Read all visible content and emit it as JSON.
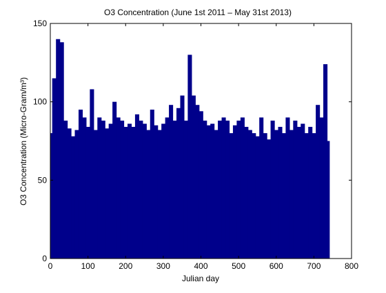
{
  "chart_data": {
    "type": "bar",
    "title": "O3 Concentration (June 1st 2011 – May 31st 2013)",
    "xlabel": "Julian day",
    "ylabel": "O3 Concentration  (Micro-Gram/m³)",
    "xlim": [
      0,
      800
    ],
    "ylim": [
      0,
      150
    ],
    "xticks": [
      "0",
      "100",
      "200",
      "300",
      "400",
      "500",
      "600",
      "700",
      "800"
    ],
    "yticks": [
      "0",
      "50",
      "100",
      "150"
    ],
    "grid": false,
    "legend": "none",
    "bar_color": "#00008b",
    "series": [
      {
        "x": [
          1,
          10,
          20,
          30,
          40,
          50,
          60,
          70,
          80,
          90,
          100,
          110,
          120,
          130,
          140,
          150,
          160,
          170,
          180,
          190,
          200,
          210,
          220,
          230,
          240,
          250,
          260,
          270,
          280,
          290,
          300,
          310,
          320,
          330,
          340,
          350,
          360,
          370,
          380,
          390,
          400,
          410,
          420,
          430,
          440,
          450,
          460,
          470,
          480,
          490,
          500,
          510,
          520,
          530,
          540,
          550,
          560,
          570,
          580,
          590,
          600,
          610,
          620,
          630,
          640,
          650,
          660,
          670,
          680,
          690,
          700,
          710,
          720,
          730,
          736
        ],
        "values": [
          80,
          115,
          140,
          138,
          88,
          83,
          78,
          82,
          95,
          90,
          84,
          108,
          82,
          90,
          88,
          83,
          86,
          100,
          90,
          88,
          84,
          86,
          84,
          92,
          88,
          86,
          82,
          95,
          85,
          82,
          86,
          90,
          98,
          88,
          96,
          104,
          88,
          130,
          104,
          98,
          94,
          88,
          85,
          86,
          82,
          88,
          90,
          88,
          80,
          85,
          88,
          90,
          84,
          82,
          80,
          78,
          90,
          80,
          76,
          88,
          82,
          84,
          80,
          90,
          82,
          88,
          84,
          86,
          80,
          84,
          80,
          98,
          90,
          124,
          75
        ]
      }
    ]
  }
}
